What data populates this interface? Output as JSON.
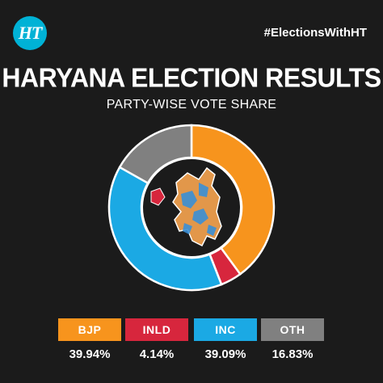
{
  "brand": {
    "logo_text": "HT",
    "hashtag": "#ElectionsWithHT"
  },
  "chart_data": {
    "type": "pie",
    "title": "HARYANA ELECTION RESULTS",
    "subtitle": "PARTY-WISE VOTE SHARE",
    "categories": [
      "BJP",
      "INLD",
      "INC",
      "OTH"
    ],
    "values": [
      39.94,
      4.14,
      39.09,
      16.83
    ],
    "value_labels": [
      "39.94%",
      "4.14%",
      "39.09%",
      "16.83%"
    ],
    "colors": [
      "#f7941d",
      "#d7263d",
      "#1ba9e4",
      "#808080"
    ],
    "donut": true,
    "legend_position": "bottom"
  }
}
